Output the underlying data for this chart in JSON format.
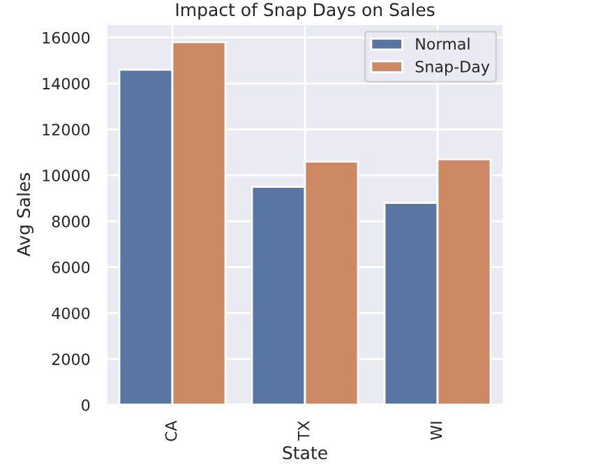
{
  "chart_data": {
    "type": "bar",
    "title": "Impact of Snap Days on Sales",
    "xlabel": "State",
    "ylabel": "Avg Sales",
    "categories": [
      "CA",
      "TX",
      "WI"
    ],
    "series": [
      {
        "name": "Normal",
        "color": "#5875a4",
        "values": [
          14600,
          9500,
          8800
        ]
      },
      {
        "name": "Snap-Day",
        "color": "#cc8963",
        "values": [
          15800,
          10600,
          10700
        ]
      }
    ],
    "ylim": [
      0,
      16600
    ],
    "yticks": [
      0,
      2000,
      4000,
      6000,
      8000,
      10000,
      12000,
      14000,
      16000
    ],
    "grid": true,
    "legend": "top right"
  }
}
